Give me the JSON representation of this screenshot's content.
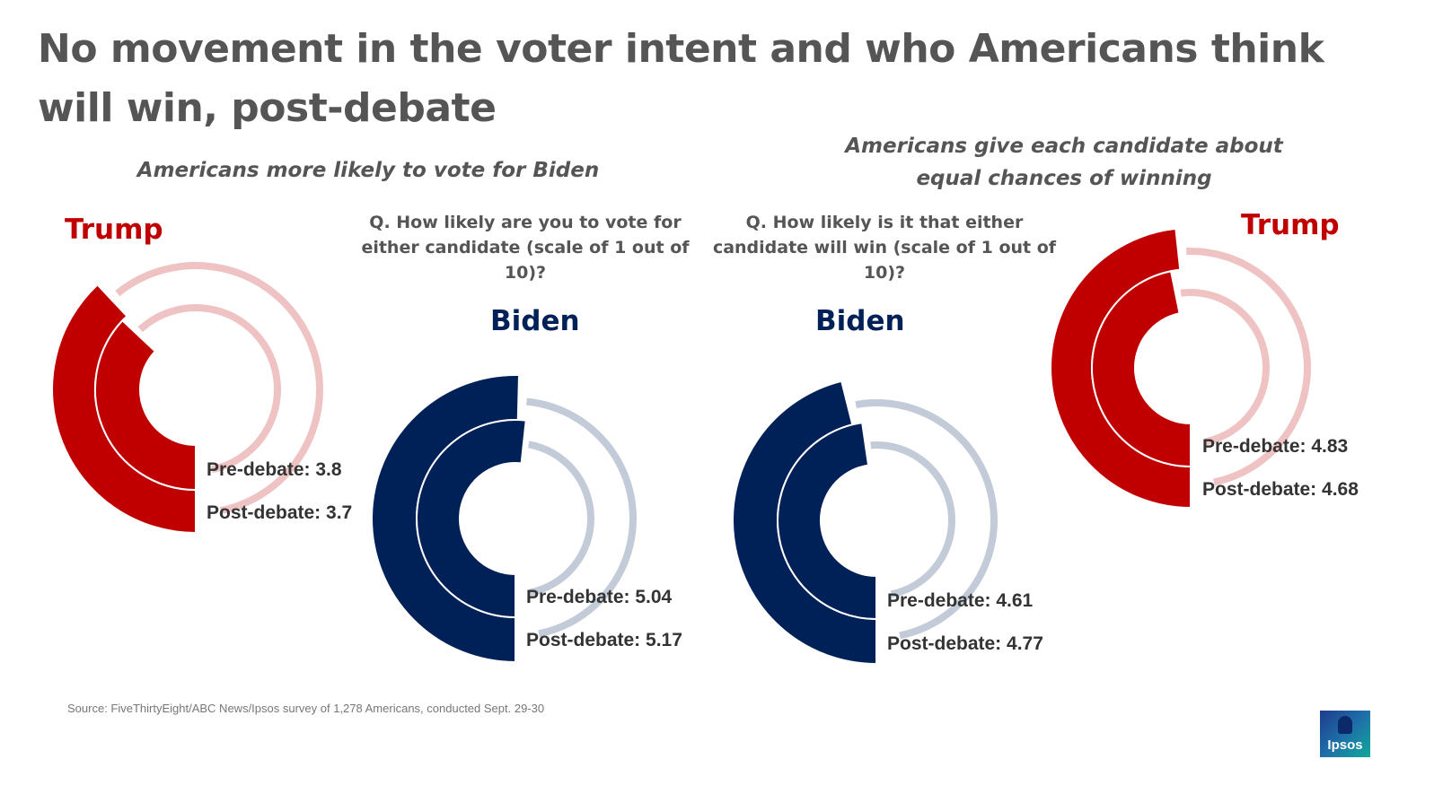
{
  "title": "No movement in the voter intent and who Americans think will win, post-debate",
  "subtitle_left": "Americans more likely to vote for Biden",
  "subtitle_right": "Americans give each candidate about equal chances of winning",
  "question_left": "Q. How likely are you to vote for either candidate (scale of 1 out of 10)?",
  "question_right": "Q. How likely is it that either candidate will win (scale of 1 out of 10)?",
  "source": "Source: FiveThirtyEight/ABC News/Ipsos survey of  1,278 Americans, conducted Sept. 29-30",
  "logo_text": "Ipsos",
  "colors": {
    "trump": "#c00000",
    "trump_track": "#efc3c3",
    "biden": "#002157",
    "biden_track": "#c3cbd8"
  },
  "chart_data": [
    {
      "type": "radial-bar",
      "id": "trump-vote",
      "candidate": "Trump",
      "scale_max": 10,
      "series": [
        {
          "name": "Pre-debate",
          "value": 3.8,
          "label": "Pre-debate: 3.8"
        },
        {
          "name": "Post-debate",
          "value": 3.7,
          "label": "Post-debate: 3.7"
        }
      ]
    },
    {
      "type": "radial-bar",
      "id": "biden-vote",
      "candidate": "Biden",
      "scale_max": 10,
      "series": [
        {
          "name": "Pre-debate",
          "value": 5.04,
          "label": "Pre-debate: 5.04"
        },
        {
          "name": "Post-debate",
          "value": 5.17,
          "label": "Post-debate: 5.17"
        }
      ]
    },
    {
      "type": "radial-bar",
      "id": "biden-win",
      "candidate": "Biden",
      "scale_max": 10,
      "series": [
        {
          "name": "Pre-debate",
          "value": 4.61,
          "label": "Pre-debate: 4.61"
        },
        {
          "name": "Post-debate",
          "value": 4.77,
          "label": "Post-debate: 4.77"
        }
      ]
    },
    {
      "type": "radial-bar",
      "id": "trump-win",
      "candidate": "Trump",
      "scale_max": 10,
      "series": [
        {
          "name": "Pre-debate",
          "value": 4.83,
          "label": "Pre-debate: 4.83"
        },
        {
          "name": "Post-debate",
          "value": 4.68,
          "label": "Post-debate: 4.68"
        }
      ]
    }
  ]
}
